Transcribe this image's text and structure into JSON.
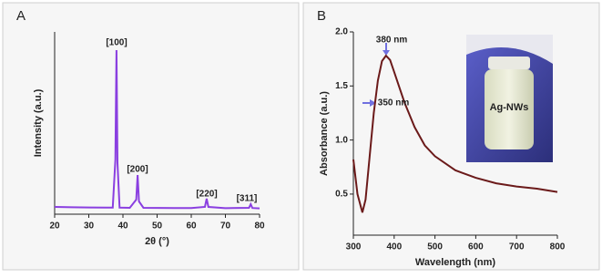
{
  "chart_data": [
    {
      "type": "line",
      "panel_label": "A",
      "xlabel": "2θ (°)",
      "ylabel": "Intensity (a.u.)",
      "color": "#8a3fe0",
      "x": [
        20,
        25,
        30,
        35,
        37,
        37.8,
        38.1,
        38.4,
        39,
        42,
        43.9,
        44.3,
        44.7,
        46,
        55,
        60,
        64,
        64.5,
        65,
        70,
        76.9,
        77.4,
        77.9,
        80
      ],
      "values": [
        4,
        3.8,
        3.7,
        3.6,
        3.6,
        30,
        90,
        28,
        3.6,
        3.5,
        8,
        21.5,
        7,
        3.5,
        3.4,
        3.4,
        4,
        8.5,
        4,
        3.3,
        3.5,
        5.5,
        3.4,
        3.2
      ],
      "xlim": [
        20,
        80
      ],
      "ylim": [
        0,
        100
      ],
      "xticks": [
        20,
        30,
        40,
        50,
        60,
        70,
        80
      ],
      "annotations": [
        "[100]",
        "[200]",
        "[220]",
        "[311]"
      ]
    },
    {
      "type": "line",
      "panel_label": "B",
      "xlabel": "Wavelength (nm)",
      "ylabel": "Absorbance (a.u.)",
      "color": "#6b1a1a",
      "x": [
        300,
        310,
        322,
        330,
        340,
        350,
        360,
        370,
        380,
        390,
        400,
        425,
        450,
        475,
        500,
        550,
        600,
        650,
        700,
        750,
        800
      ],
      "values": [
        0.82,
        0.5,
        0.33,
        0.45,
        0.85,
        1.25,
        1.55,
        1.73,
        1.78,
        1.74,
        1.63,
        1.35,
        1.12,
        0.95,
        0.85,
        0.72,
        0.65,
        0.6,
        0.57,
        0.55,
        0.52
      ],
      "xlim": [
        300,
        800
      ],
      "ylim": [
        0.12,
        2.0
      ],
      "xticks": [
        300,
        400,
        500,
        600,
        700,
        800
      ],
      "yticks": [
        0.5,
        {
          "value": 1,
          "label": "1.0"
        },
        1.5,
        {
          "value": 2,
          "label": "2.0"
        }
      ],
      "annotations": [
        "380 nm",
        "350 nm"
      ],
      "inset_label": "Ag-NWs"
    }
  ]
}
